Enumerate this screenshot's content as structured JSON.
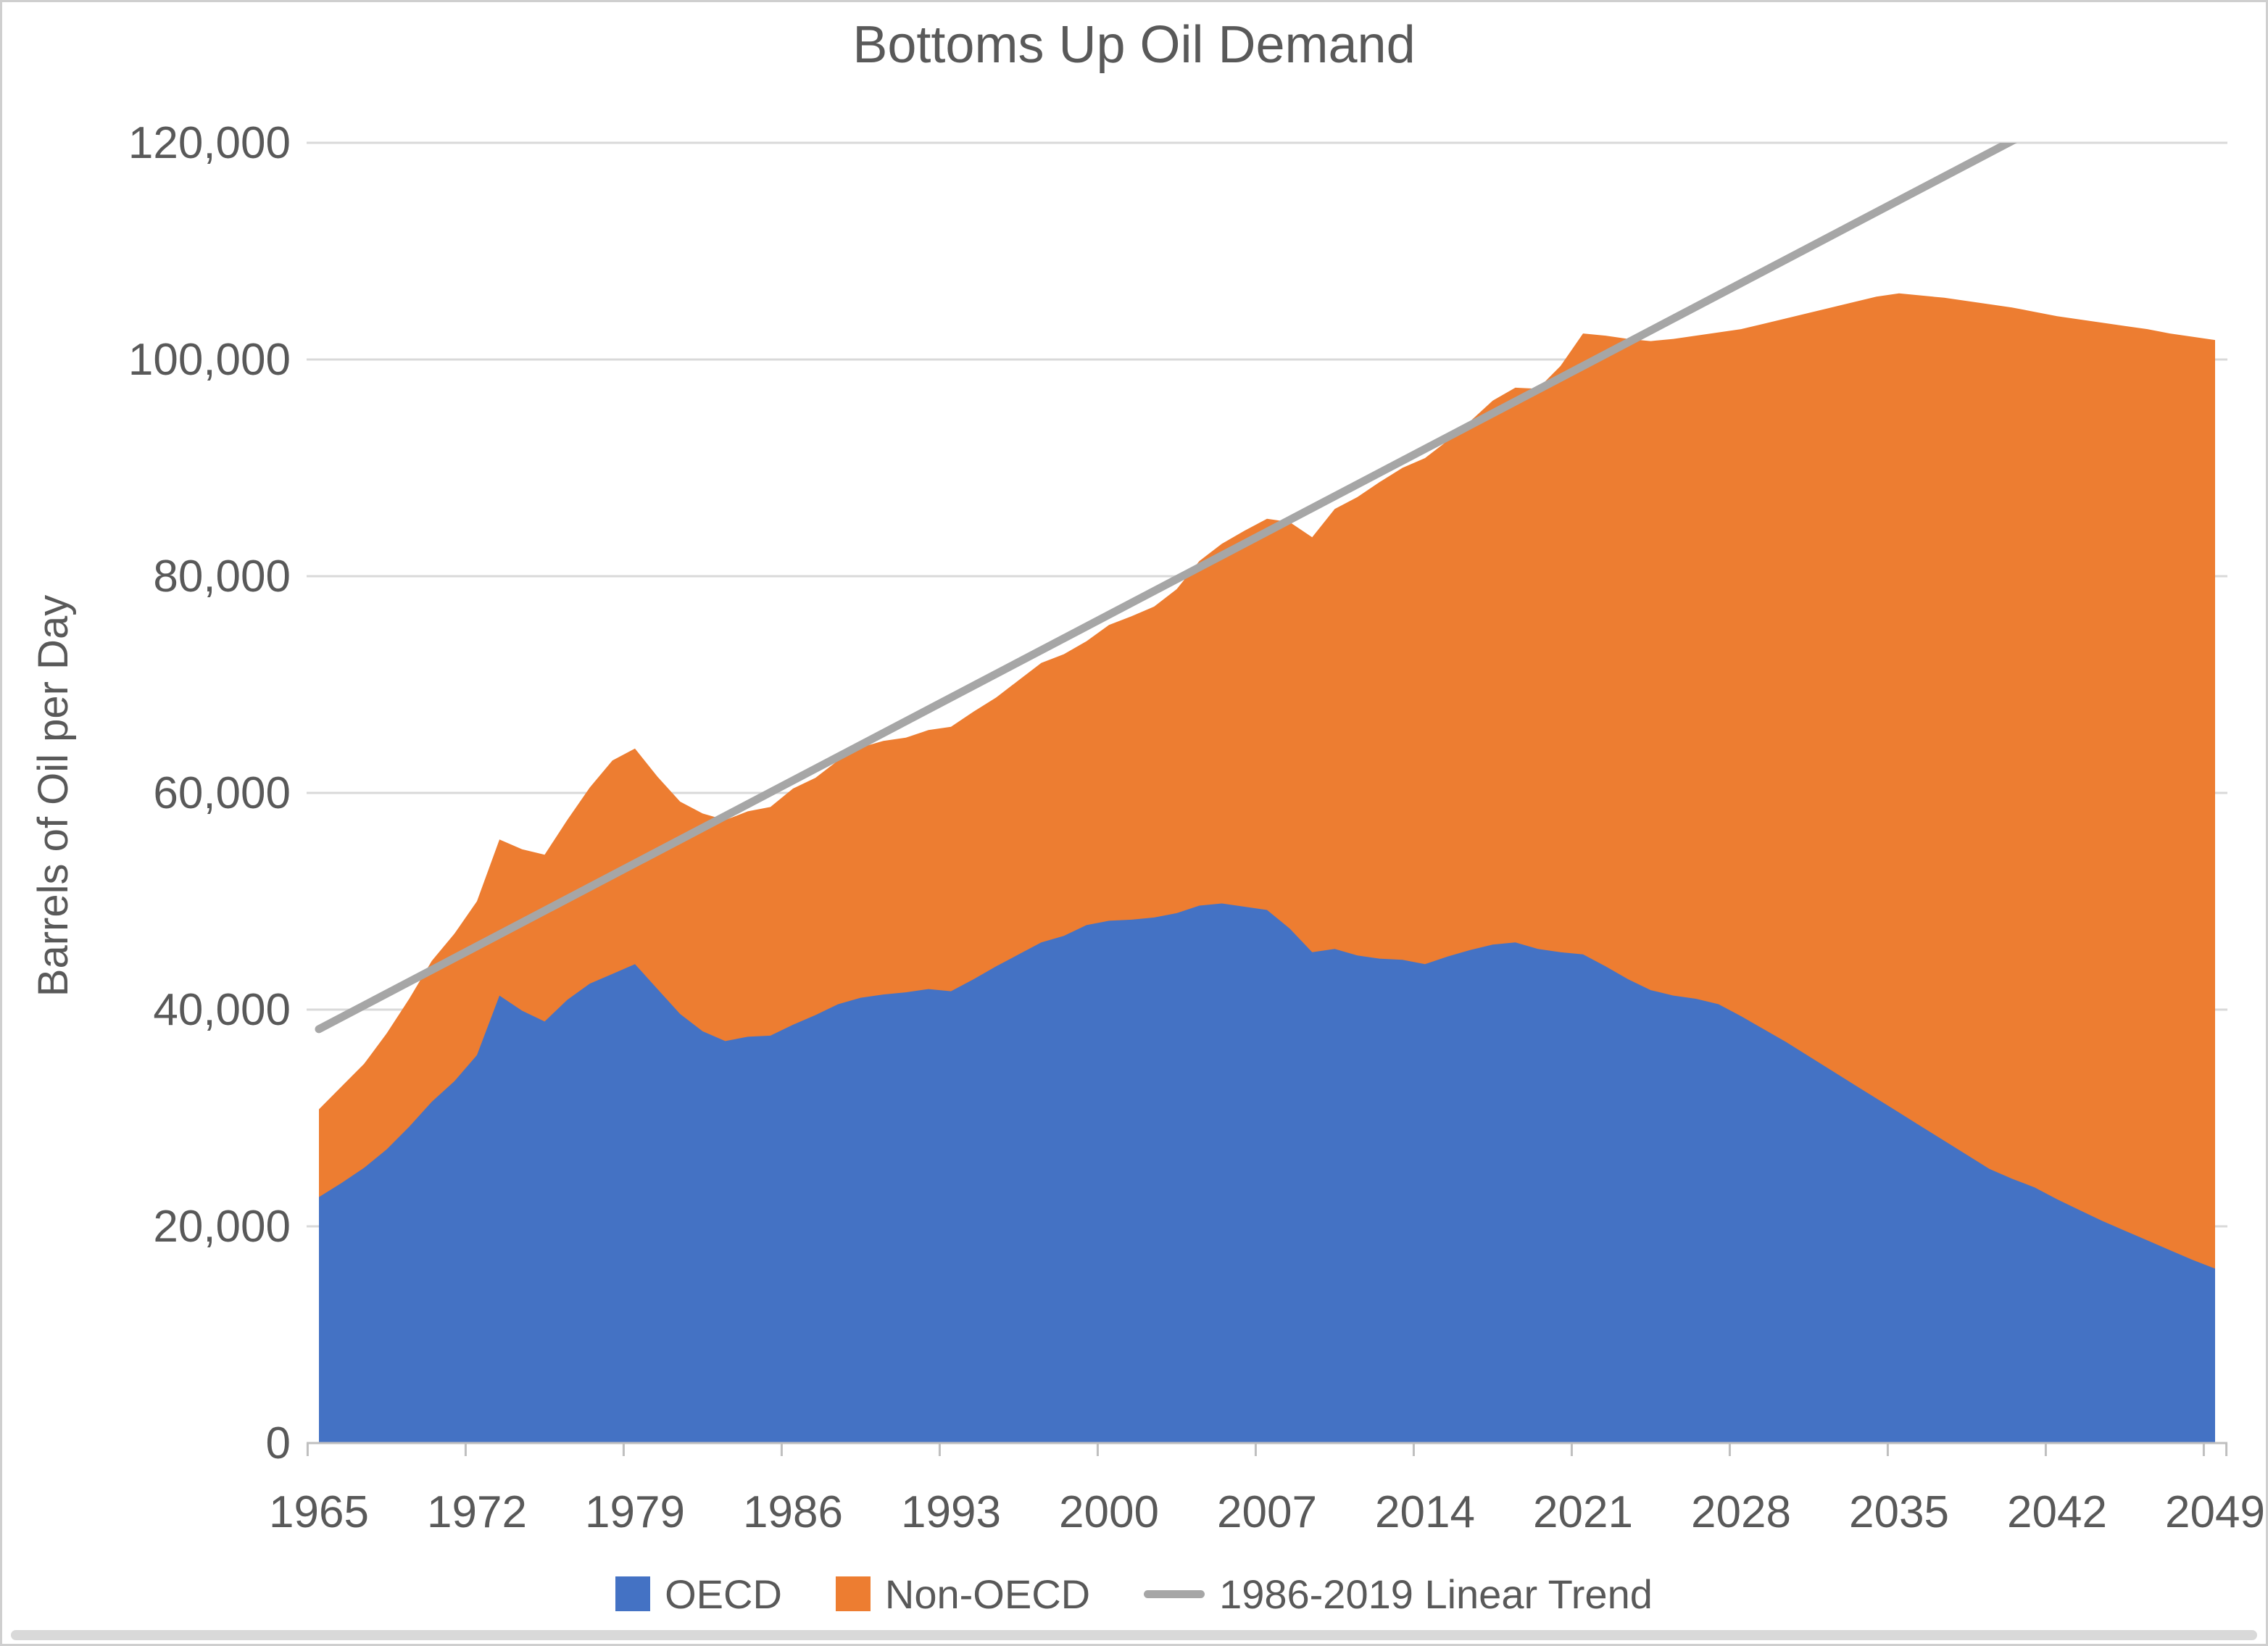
{
  "window": {
    "border_color": "#CFCFCF",
    "bottom_bar_color": "#D9D9D9",
    "background": "#FFFFFF"
  },
  "chart_data": {
    "type": "area",
    "stacked": true,
    "title": "Bottoms Up Oil Demand",
    "xlabel": "",
    "ylabel": "Barrels of Oil per Day",
    "ylim": [
      0,
      120000
    ],
    "y_tick_step": 20000,
    "y_tick_labels": [
      "0",
      "20,000",
      "40,000",
      "60,000",
      "80,000",
      "100,000",
      "120,000"
    ],
    "x_tick_years": [
      "1965",
      "1972",
      "1979",
      "1986",
      "1993",
      "2000",
      "2007",
      "2014",
      "2021",
      "2028",
      "2035",
      "2042",
      "2049"
    ],
    "grid": true,
    "legend_position": "bottom",
    "text_color": "#595959",
    "gridline_color": "#D9D9D9",
    "axis_line_color": "#BFBFBF",
    "years": [
      1965,
      1966,
      1967,
      1968,
      1969,
      1970,
      1971,
      1972,
      1973,
      1974,
      1975,
      1976,
      1977,
      1978,
      1979,
      1980,
      1981,
      1982,
      1983,
      1984,
      1985,
      1986,
      1987,
      1988,
      1989,
      1990,
      1991,
      1992,
      1993,
      1994,
      1995,
      1996,
      1997,
      1998,
      1999,
      2000,
      2001,
      2002,
      2003,
      2004,
      2005,
      2006,
      2007,
      2008,
      2009,
      2010,
      2011,
      2012,
      2013,
      2014,
      2015,
      2016,
      2017,
      2018,
      2019,
      2020,
      2021,
      2022,
      2023,
      2024,
      2025,
      2026,
      2027,
      2028,
      2029,
      2030,
      2031,
      2032,
      2033,
      2034,
      2035,
      2036,
      2037,
      2038,
      2039,
      2040,
      2041,
      2042,
      2043,
      2044,
      2045,
      2046,
      2047,
      2048,
      2049
    ],
    "series": [
      {
        "name": "OECD",
        "color": "#4472C4",
        "values": [
          22700,
          24000,
          25400,
          27100,
          29200,
          31500,
          33400,
          35800,
          41300,
          39900,
          38900,
          40900,
          42400,
          43300,
          44200,
          41900,
          39600,
          38000,
          37100,
          37500,
          37600,
          38600,
          39500,
          40500,
          41100,
          41400,
          41600,
          41900,
          41700,
          42800,
          44000,
          45100,
          46200,
          46800,
          47800,
          48200,
          48300,
          48500,
          48900,
          49600,
          49800,
          49500,
          49200,
          47500,
          45300,
          45600,
          45000,
          44700,
          44600,
          44200,
          44900,
          45500,
          46000,
          46200,
          45600,
          45300,
          45100,
          44000,
          42800,
          41800,
          41300,
          41000,
          40500,
          39400,
          38200,
          37000,
          35700,
          34400,
          33100,
          31800,
          30500,
          29200,
          27900,
          26600,
          25300,
          24400,
          23600,
          22500,
          21500,
          20500,
          19600,
          18700,
          17800,
          16900,
          16100
        ]
      },
      {
        "name": "Non-OECD",
        "color": "#ED7D31",
        "values": [
          8100,
          8900,
          9600,
          10700,
          11800,
          13000,
          13600,
          14200,
          14400,
          14900,
          15400,
          16600,
          18100,
          19700,
          19900,
          19600,
          19600,
          20100,
          20400,
          20800,
          21100,
          21800,
          21900,
          22500,
          23100,
          23400,
          23500,
          23900,
          24400,
          24700,
          24800,
          25300,
          25800,
          26000,
          26200,
          27300,
          28000,
          28700,
          29900,
          31800,
          33200,
          34700,
          36100,
          37500,
          38300,
          40600,
          42300,
          44000,
          45400,
          46700,
          47600,
          48800,
          50200,
          51200,
          51700,
          54100,
          57300,
          58200,
          59100,
          59900,
          60600,
          61200,
          62000,
          63400,
          65100,
          66800,
          68600,
          70400,
          72200,
          74000,
          75600,
          76700,
          77800,
          78800,
          79800,
          80400,
          80800,
          81500,
          82200,
          82900,
          83500,
          84100,
          84600,
          85200,
          85700
        ]
      }
    ],
    "trend": {
      "name": "1986-2019 Linear Trend",
      "color": "#A6A6A6",
      "fit_range": "1986-2019",
      "points": [
        {
          "year": 1965,
          "value": 38200
        },
        {
          "year": 2049,
          "value": 130000
        }
      ]
    }
  }
}
